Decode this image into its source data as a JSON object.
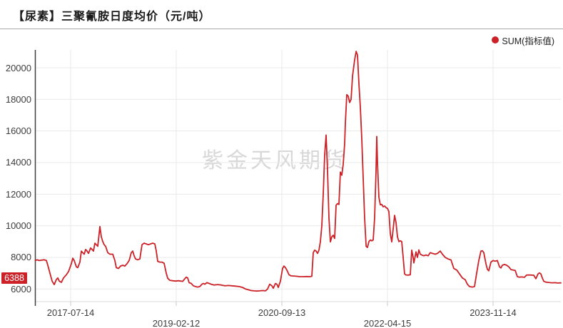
{
  "header": {
    "title": "【尿素】三聚氰胺日度均价（元/吨）"
  },
  "legend": {
    "label": "SUM(指标值)",
    "marker_color": "#cb2127"
  },
  "watermark": {
    "text": "紫金天风期货"
  },
  "last_value_badge": {
    "label": "6388",
    "value": 6388,
    "bg_color": "#cb2127"
  },
  "chart_data": {
    "type": "line",
    "title": "【尿素】三聚氰胺日度均价（元/吨）",
    "series_name": "SUM(指标值)",
    "line_color": "#cb2127",
    "grid": true,
    "legend_position": "top-right",
    "ylim": [
      5200,
      21130
    ],
    "y_ticks": [
      6000,
      8000,
      10000,
      12000,
      14000,
      16000,
      18000,
      20000
    ],
    "x_ticks": [
      {
        "label": "2017-07-14",
        "pos": 0.0672,
        "row": 0
      },
      {
        "label": "2019-02-12",
        "pos": 0.2681,
        "row": 1
      },
      {
        "label": "2020-09-13",
        "pos": 0.4691,
        "row": 0
      },
      {
        "label": "2022-04-15",
        "pos": 0.6701,
        "row": 1
      },
      {
        "label": "2023-11-14",
        "pos": 0.871,
        "row": 0
      }
    ],
    "points": [
      [
        0.0,
        7800
      ],
      [
        0.0034,
        7850
      ],
      [
        0.0075,
        7800
      ],
      [
        0.0115,
        7820
      ],
      [
        0.017,
        7850
      ],
      [
        0.021,
        7800
      ],
      [
        0.0238,
        7500
      ],
      [
        0.0278,
        7000
      ],
      [
        0.0319,
        6500
      ],
      [
        0.036,
        6280
      ],
      [
        0.0401,
        6600
      ],
      [
        0.0428,
        6700
      ],
      [
        0.0455,
        6500
      ],
      [
        0.0496,
        6420
      ],
      [
        0.0536,
        6700
      ],
      [
        0.0591,
        6900
      ],
      [
        0.0631,
        7100
      ],
      [
        0.0686,
        7600
      ],
      [
        0.0713,
        7950
      ],
      [
        0.074,
        7800
      ],
      [
        0.0781,
        7400
      ],
      [
        0.0808,
        7350
      ],
      [
        0.0849,
        7700
      ],
      [
        0.0876,
        8400
      ],
      [
        0.0903,
        8300
      ],
      [
        0.093,
        8200
      ],
      [
        0.0957,
        8500
      ],
      [
        0.0984,
        8400
      ],
      [
        0.1012,
        8250
      ],
      [
        0.1052,
        8600
      ],
      [
        0.1079,
        8500
      ],
      [
        0.1107,
        8400
      ],
      [
        0.1134,
        8900
      ],
      [
        0.1161,
        8800
      ],
      [
        0.1188,
        8700
      ],
      [
        0.1229,
        9950
      ],
      [
        0.1256,
        9300
      ],
      [
        0.1283,
        9000
      ],
      [
        0.131,
        8800
      ],
      [
        0.1337,
        8700
      ],
      [
        0.1378,
        8300
      ],
      [
        0.1419,
        8200
      ],
      [
        0.1473,
        8200
      ],
      [
        0.1514,
        7800
      ],
      [
        0.1541,
        7350
      ],
      [
        0.1582,
        7300
      ],
      [
        0.1623,
        7450
      ],
      [
        0.1663,
        7500
      ],
      [
        0.1704,
        7450
      ],
      [
        0.1745,
        7600
      ],
      [
        0.1785,
        7800
      ],
      [
        0.1826,
        8300
      ],
      [
        0.1853,
        8400
      ],
      [
        0.188,
        8100
      ],
      [
        0.1907,
        7900
      ],
      [
        0.1948,
        7850
      ],
      [
        0.1989,
        7900
      ],
      [
        0.203,
        8800
      ],
      [
        0.2071,
        8900
      ],
      [
        0.2111,
        8850
      ],
      [
        0.2152,
        8800
      ],
      [
        0.2193,
        8850
      ],
      [
        0.2233,
        8900
      ],
      [
        0.2274,
        8850
      ],
      [
        0.2301,
        8400
      ],
      [
        0.2328,
        7750
      ],
      [
        0.2369,
        7700
      ],
      [
        0.241,
        7700
      ],
      [
        0.2451,
        7630
      ],
      [
        0.2491,
        7000
      ],
      [
        0.2519,
        6680
      ],
      [
        0.2559,
        6550
      ],
      [
        0.2614,
        6520
      ],
      [
        0.2668,
        6500
      ],
      [
        0.2722,
        6520
      ],
      [
        0.2763,
        6500
      ],
      [
        0.2804,
        6480
      ],
      [
        0.2845,
        6650
      ],
      [
        0.2872,
        6750
      ],
      [
        0.2899,
        6700
      ],
      [
        0.2926,
        6400
      ],
      [
        0.2967,
        6350
      ],
      [
        0.3007,
        6200
      ],
      [
        0.3048,
        6150
      ],
      [
        0.3089,
        6120
      ],
      [
        0.313,
        6150
      ],
      [
        0.3171,
        6300
      ],
      [
        0.3198,
        6350
      ],
      [
        0.3225,
        6300
      ],
      [
        0.3266,
        6400
      ],
      [
        0.3306,
        6350
      ],
      [
        0.3347,
        6300
      ],
      [
        0.3401,
        6250
      ],
      [
        0.3469,
        6280
      ],
      [
        0.3537,
        6250
      ],
      [
        0.3605,
        6200
      ],
      [
        0.3673,
        6220
      ],
      [
        0.3741,
        6200
      ],
      [
        0.3808,
        6180
      ],
      [
        0.3876,
        6150
      ],
      [
        0.3944,
        6100
      ],
      [
        0.3999,
        6000
      ],
      [
        0.4053,
        5950
      ],
      [
        0.4107,
        5900
      ],
      [
        0.4161,
        5880
      ],
      [
        0.4216,
        5870
      ],
      [
        0.427,
        5880
      ],
      [
        0.4324,
        5900
      ],
      [
        0.4379,
        5880
      ],
      [
        0.4419,
        6000
      ],
      [
        0.446,
        6300
      ],
      [
        0.4501,
        6200
      ],
      [
        0.4528,
        6050
      ],
      [
        0.4569,
        6350
      ],
      [
        0.4596,
        6300
      ],
      [
        0.4623,
        6100
      ],
      [
        0.4664,
        6500
      ],
      [
        0.4705,
        7300
      ],
      [
        0.4732,
        7450
      ],
      [
        0.4759,
        7350
      ],
      [
        0.4786,
        7200
      ],
      [
        0.4827,
        6900
      ],
      [
        0.4868,
        6830
      ],
      [
        0.4922,
        6820
      ],
      [
        0.4976,
        6800
      ],
      [
        0.5031,
        6780
      ],
      [
        0.5099,
        6780
      ],
      [
        0.5166,
        6790
      ],
      [
        0.5221,
        6780
      ],
      [
        0.5261,
        6800
      ],
      [
        0.5289,
        8300
      ],
      [
        0.5316,
        8460
      ],
      [
        0.5343,
        8400
      ],
      [
        0.537,
        8250
      ],
      [
        0.5397,
        8460
      ],
      [
        0.5424,
        9000
      ],
      [
        0.5451,
        10000
      ],
      [
        0.5479,
        12000
      ],
      [
        0.5506,
        14500
      ],
      [
        0.5533,
        15740
      ],
      [
        0.556,
        13500
      ],
      [
        0.5587,
        10500
      ],
      [
        0.5614,
        8980
      ],
      [
        0.5642,
        9300
      ],
      [
        0.5669,
        9400
      ],
      [
        0.5696,
        9200
      ],
      [
        0.5723,
        11300
      ],
      [
        0.575,
        11400
      ],
      [
        0.5777,
        11350
      ],
      [
        0.5805,
        13400
      ],
      [
        0.5832,
        13200
      ],
      [
        0.5859,
        13900
      ],
      [
        0.5886,
        15200
      ],
      [
        0.59,
        16500
      ],
      [
        0.5927,
        18300
      ],
      [
        0.5954,
        18200
      ],
      [
        0.5981,
        17800
      ],
      [
        0.6008,
        18000
      ],
      [
        0.6036,
        19500
      ],
      [
        0.6076,
        20500
      ],
      [
        0.6104,
        21040
      ],
      [
        0.6131,
        20800
      ],
      [
        0.6158,
        19000
      ],
      [
        0.6185,
        17500
      ],
      [
        0.6212,
        15500
      ],
      [
        0.6239,
        13000
      ],
      [
        0.6266,
        10500
      ],
      [
        0.6294,
        8700
      ],
      [
        0.6321,
        8630
      ],
      [
        0.6348,
        9000
      ],
      [
        0.6375,
        9100
      ],
      [
        0.6402,
        9050
      ],
      [
        0.6429,
        9100
      ],
      [
        0.6456,
        10500
      ],
      [
        0.6484,
        13500
      ],
      [
        0.6497,
        15650
      ],
      [
        0.6511,
        14000
      ],
      [
        0.6538,
        11800
      ],
      [
        0.6565,
        11330
      ],
      [
        0.6592,
        11350
      ],
      [
        0.6619,
        11200
      ],
      [
        0.6647,
        11250
      ],
      [
        0.6674,
        11150
      ],
      [
        0.6701,
        11100
      ],
      [
        0.6728,
        10900
      ],
      [
        0.6755,
        9500
      ],
      [
        0.6782,
        8980
      ],
      [
        0.6809,
        9800
      ],
      [
        0.6837,
        10660
      ],
      [
        0.6864,
        10200
      ],
      [
        0.6891,
        9300
      ],
      [
        0.6918,
        9000
      ],
      [
        0.6945,
        9050
      ],
      [
        0.6972,
        9000
      ],
      [
        0.6999,
        8000
      ],
      [
        0.7027,
        6950
      ],
      [
        0.7054,
        6890
      ],
      [
        0.7094,
        6880
      ],
      [
        0.7135,
        6900
      ],
      [
        0.7162,
        8460
      ],
      [
        0.7189,
        8000
      ],
      [
        0.7203,
        7650
      ],
      [
        0.723,
        8100
      ],
      [
        0.7244,
        8350
      ],
      [
        0.7271,
        8000
      ],
      [
        0.7298,
        8470
      ],
      [
        0.7325,
        8200
      ],
      [
        0.7352,
        8150
      ],
      [
        0.7393,
        8100
      ],
      [
        0.7434,
        8150
      ],
      [
        0.7474,
        8100
      ],
      [
        0.7515,
        8300
      ],
      [
        0.7556,
        8250
      ],
      [
        0.761,
        8200
      ],
      [
        0.7651,
        8250
      ],
      [
        0.7705,
        8400
      ],
      [
        0.7746,
        8200
      ],
      [
        0.78,
        8000
      ],
      [
        0.7855,
        7900
      ],
      [
        0.7909,
        7840
      ],
      [
        0.7963,
        7300
      ],
      [
        0.8018,
        7200
      ],
      [
        0.8072,
        6950
      ],
      [
        0.8126,
        6700
      ],
      [
        0.8181,
        6580
      ],
      [
        0.8221,
        6300
      ],
      [
        0.8262,
        6150
      ],
      [
        0.8316,
        6120
      ],
      [
        0.8357,
        6150
      ],
      [
        0.8398,
        7000
      ],
      [
        0.8439,
        7800
      ],
      [
        0.8479,
        8400
      ],
      [
        0.8506,
        8420
      ],
      [
        0.8534,
        8300
      ],
      [
        0.8574,
        7600
      ],
      [
        0.8601,
        7250
      ],
      [
        0.8629,
        7150
      ],
      [
        0.8669,
        7700
      ],
      [
        0.871,
        7800
      ],
      [
        0.8751,
        7760
      ],
      [
        0.8792,
        7800
      ],
      [
        0.8832,
        7400
      ],
      [
        0.886,
        7330
      ],
      [
        0.8887,
        7500
      ],
      [
        0.8927,
        7550
      ],
      [
        0.8968,
        7500
      ],
      [
        0.9009,
        7400
      ],
      [
        0.905,
        7230
      ],
      [
        0.909,
        7200
      ],
      [
        0.9131,
        7170
      ],
      [
        0.9172,
        6780
      ],
      [
        0.9213,
        6750
      ],
      [
        0.9253,
        6760
      ],
      [
        0.9308,
        6740
      ],
      [
        0.9348,
        6880
      ],
      [
        0.9389,
        6890
      ],
      [
        0.9443,
        6880
      ],
      [
        0.9484,
        6870
      ],
      [
        0.9525,
        6650
      ],
      [
        0.9566,
        6950
      ],
      [
        0.9593,
        7020
      ],
      [
        0.962,
        6950
      ],
      [
        0.9647,
        6700
      ],
      [
        0.9674,
        6490
      ],
      [
        0.9715,
        6430
      ],
      [
        0.9756,
        6420
      ],
      [
        0.9796,
        6400
      ],
      [
        0.9837,
        6390
      ],
      [
        0.9891,
        6400
      ],
      [
        0.9932,
        6380
      ],
      [
        1.0,
        6388
      ]
    ]
  }
}
